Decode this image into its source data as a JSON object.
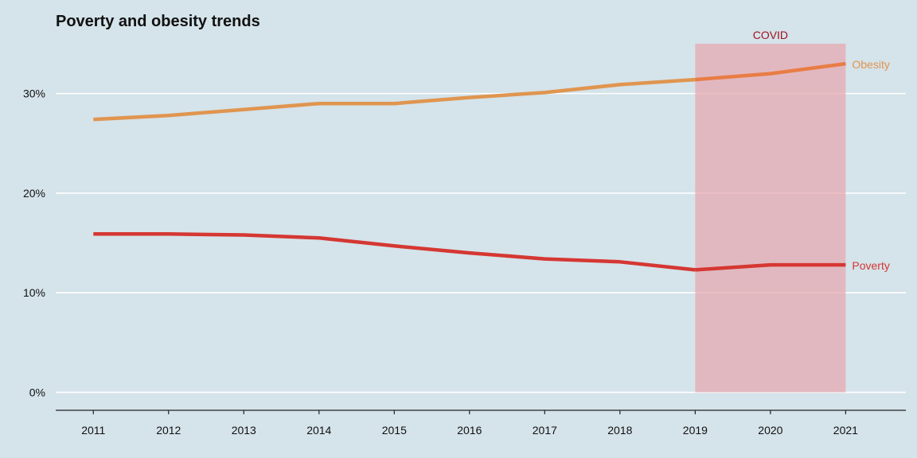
{
  "colors": {
    "background": "#d5e3ea",
    "grid": "#ffffff",
    "axis": "#222222",
    "covid_band": "#e6a9b2",
    "covid_text": "#a0121e"
  },
  "chart_data": {
    "type": "line",
    "title": "Poverty and obesity trends",
    "xlabel": "",
    "ylabel": "",
    "x": [
      2011,
      2012,
      2013,
      2014,
      2015,
      2016,
      2017,
      2018,
      2019,
      2020,
      2021
    ],
    "xlim": [
      2010.5,
      2021.8
    ],
    "ylim": [
      -1.8,
      35
    ],
    "yticks": [
      0,
      10,
      20,
      30
    ],
    "ytick_labels": [
      "0%",
      "10%",
      "20%",
      "30%"
    ],
    "grid": "horizontal",
    "series": [
      {
        "name": "Obesity",
        "color": "#e0954f",
        "color_covid": "#e87d45",
        "values": [
          27.4,
          27.8,
          28.4,
          29.0,
          29.0,
          29.6,
          30.1,
          30.9,
          31.4,
          32.0,
          33.0
        ]
      },
      {
        "name": "Poverty",
        "color": "#d53732",
        "values": [
          15.9,
          15.9,
          15.8,
          15.5,
          14.7,
          14.0,
          13.4,
          13.1,
          12.3,
          12.8,
          12.8
        ]
      }
    ],
    "annotations": [
      {
        "type": "band",
        "label": "COVID",
        "x_start": 2019,
        "x_end": 2021,
        "y_start": 0,
        "y_end": 35
      }
    ]
  }
}
